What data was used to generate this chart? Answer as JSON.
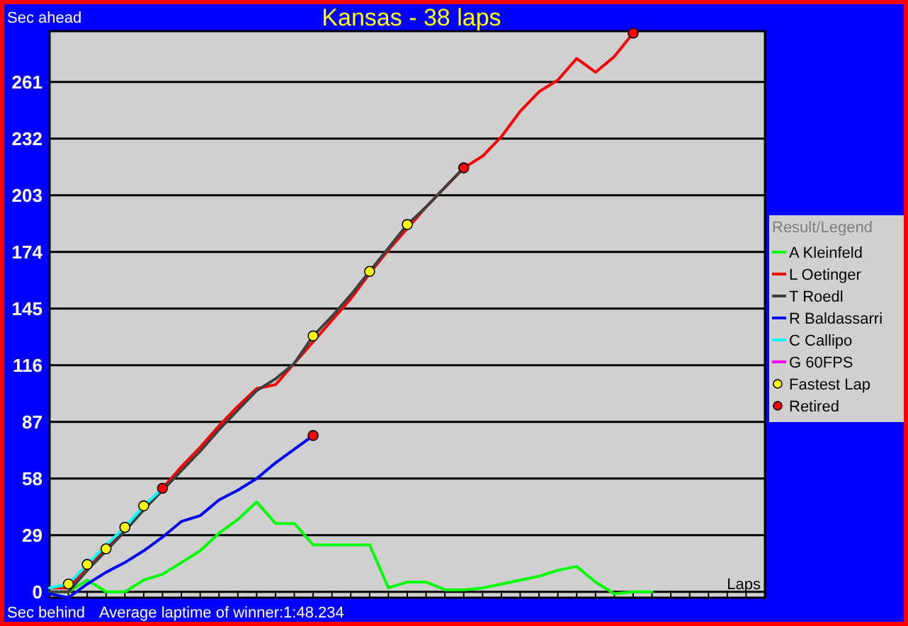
{
  "chart_data": {
    "type": "line",
    "title": "Kansas - 38 laps",
    "ylabel": "Sec ahead",
    "xlabel": "Laps",
    "legend_title": "Result/Legend",
    "annotations": [
      "Sec behind",
      "Average laptime of winner:1:48.234"
    ],
    "categories": [
      null,
      null,
      null,
      null,
      null,
      null,
      null,
      null,
      null,
      null,
      null,
      null,
      null,
      null,
      null,
      null,
      null,
      null,
      null,
      null,
      null,
      null,
      null,
      null,
      null,
      null,
      null,
      null,
      null,
      null,
      null,
      null,
      null,
      null,
      null,
      null,
      null,
      null,
      null
    ],
    "ylim": [
      -3,
      287
    ],
    "yticks": [
      0,
      29,
      58,
      87,
      116,
      145,
      174,
      203,
      232,
      261
    ],
    "grid": "y",
    "legend": "right",
    "tick_labels": "y",
    "series": [
      {
        "name": "A Kleinfeld",
        "color": "#00ff00",
        "values": [
          0,
          0,
          6,
          0,
          0,
          6,
          9,
          15,
          21,
          30,
          37,
          46,
          35,
          35,
          24,
          24,
          24,
          24,
          2,
          5,
          5,
          1,
          1,
          2,
          4,
          6,
          8,
          11,
          13,
          5,
          -1,
          0,
          0,
          null,
          null,
          null,
          null,
          null,
          null
        ]
      },
      {
        "name": "L Oetinger",
        "color": "#ff0000",
        "values": [
          2,
          2,
          13,
          22,
          33,
          43,
          53,
          64,
          74,
          85,
          95,
          104,
          106,
          117,
          128,
          139,
          150,
          163,
          175,
          186,
          197,
          207,
          217,
          223,
          233,
          246,
          256,
          262,
          273,
          266,
          274,
          286,
          null,
          null,
          null,
          null,
          null,
          null,
          null
        ]
      },
      {
        "name": "T Roedl",
        "color": "#404040",
        "values": [
          0,
          0,
          11,
          21,
          31,
          42,
          52,
          62,
          72,
          83,
          93,
          103,
          109,
          117,
          131,
          141,
          152,
          164,
          176,
          188,
          197,
          207,
          217,
          null,
          null,
          null,
          null,
          null,
          null,
          null,
          null,
          null,
          null,
          null,
          null,
          null,
          null,
          null,
          null
        ]
      },
      {
        "name": "R Baldassarri",
        "color": "#0000ff",
        "values": [
          -1,
          -3,
          4,
          10,
          15,
          21,
          28,
          36,
          39,
          47,
          52,
          58,
          66,
          73,
          80,
          null,
          null,
          null,
          null,
          null,
          null,
          null,
          null,
          null,
          null,
          null,
          null,
          null,
          null,
          null,
          null,
          null,
          null,
          null,
          null,
          null,
          null,
          null,
          null
        ]
      },
      {
        "name": "C Callipo",
        "color": "#00ffff",
        "values": [
          2,
          4,
          14,
          24,
          33,
          44,
          53,
          null,
          null,
          null,
          null,
          null,
          null,
          null,
          null,
          null,
          null,
          null,
          null,
          null,
          null,
          null,
          null,
          null,
          null,
          null,
          null,
          null,
          null,
          null,
          null,
          null,
          null,
          null,
          null,
          null,
          null,
          null,
          null
        ]
      },
      {
        "name": "G 60FPS",
        "color": "#ff00ff",
        "values": [
          null,
          null,
          null,
          null,
          null,
          null,
          null,
          null,
          null,
          null,
          null,
          null,
          null,
          null,
          null,
          null,
          null,
          null,
          null,
          null,
          null,
          null,
          null,
          null,
          null,
          null,
          null,
          null,
          null,
          null,
          null,
          null,
          null,
          null,
          null,
          null,
          null,
          null,
          null
        ]
      },
      {
        "name": "Fastest Lap",
        "type": "scatter",
        "color": "#ffff00",
        "values": [
          null,
          4,
          14,
          22,
          33,
          44,
          null,
          null,
          null,
          null,
          null,
          null,
          null,
          null,
          131,
          null,
          null,
          164,
          null,
          188,
          null,
          null,
          null,
          null,
          null,
          null,
          null,
          null,
          null,
          null,
          null,
          null,
          null,
          null,
          null,
          null,
          null,
          null,
          null
        ]
      },
      {
        "name": "Retired",
        "type": "scatter",
        "color": "#ff0000",
        "values": [
          null,
          null,
          null,
          null,
          null,
          null,
          53,
          null,
          null,
          null,
          null,
          null,
          null,
          null,
          80,
          null,
          null,
          null,
          null,
          null,
          null,
          null,
          217,
          null,
          null,
          null,
          null,
          null,
          null,
          null,
          null,
          286,
          null,
          null,
          null,
          null,
          null,
          null,
          null
        ]
      }
    ]
  }
}
